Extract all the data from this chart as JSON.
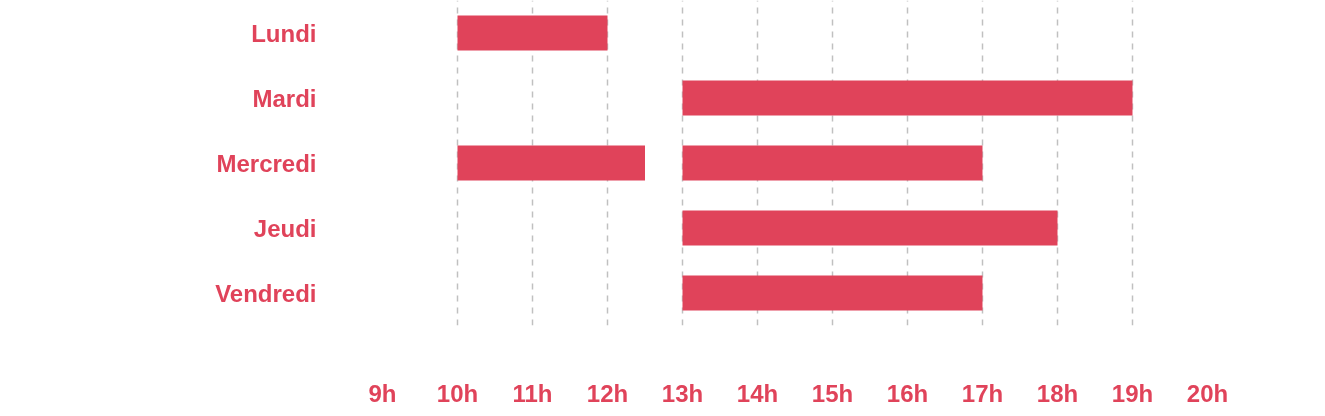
{
  "chart_data": {
    "type": "bar",
    "orientation": "horizontal",
    "categories": [
      "Lundi",
      "Mardi",
      "Mercredi",
      "Jeudi",
      "Vendredi"
    ],
    "series": [
      {
        "color": "#e0435a",
        "base": [
          10,
          13,
          10,
          13,
          13
        ],
        "values": [
          2,
          6,
          2.5,
          5,
          4
        ]
      },
      {
        "color": "#e0435a",
        "base": [
          null,
          null,
          13,
          null,
          null
        ],
        "values": [
          null,
          null,
          4,
          null,
          null
        ]
      }
    ],
    "xlim": [
      9,
      20
    ],
    "xticks": [
      {
        "value": 9,
        "label": "9h"
      },
      {
        "value": 10,
        "label": "10h"
      },
      {
        "value": 11,
        "label": "11h"
      },
      {
        "value": 12,
        "label": "12h"
      },
      {
        "value": 13,
        "label": "13h"
      },
      {
        "value": 14,
        "label": "14h"
      },
      {
        "value": 15,
        "label": "15h"
      },
      {
        "value": 16,
        "label": "16h"
      },
      {
        "value": 17,
        "label": "17h"
      },
      {
        "value": 18,
        "label": "18h"
      },
      {
        "value": 19,
        "label": "19h"
      },
      {
        "value": 20,
        "label": "20h"
      }
    ],
    "grid": "x"
  }
}
